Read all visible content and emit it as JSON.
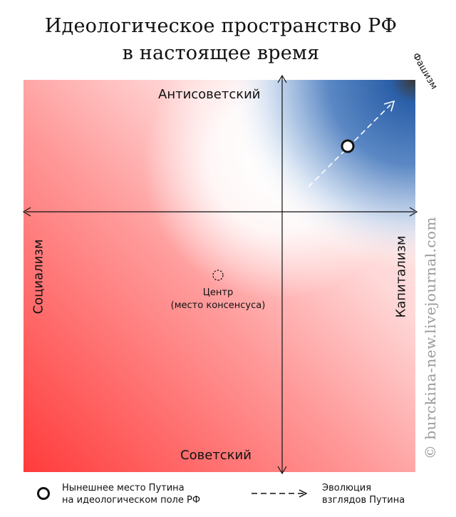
{
  "title": {
    "line1": "Идеологическое пространство РФ",
    "line2": "в настоящее время"
  },
  "axes": {
    "top": "Антисоветский",
    "bottom": "Советский",
    "left": "Социализм",
    "right": "Капитализм",
    "corner_top_right": "Фашизм"
  },
  "center": {
    "line1": "Центр",
    "line2": "(место консенсуса)"
  },
  "legend": {
    "point_line1": "Нынешнее место Путина",
    "point_line2": "на идеологическом поле РФ",
    "arrow_line1": "Эволюция",
    "arrow_line2": "взглядов Путина"
  },
  "watermark": "© burckina-new.livejournal.com",
  "colors": {
    "socialism_red": "#ff3b3b",
    "fascism_blue": "#2b5fa8",
    "fascism_dark": "#3a3a3a"
  }
}
